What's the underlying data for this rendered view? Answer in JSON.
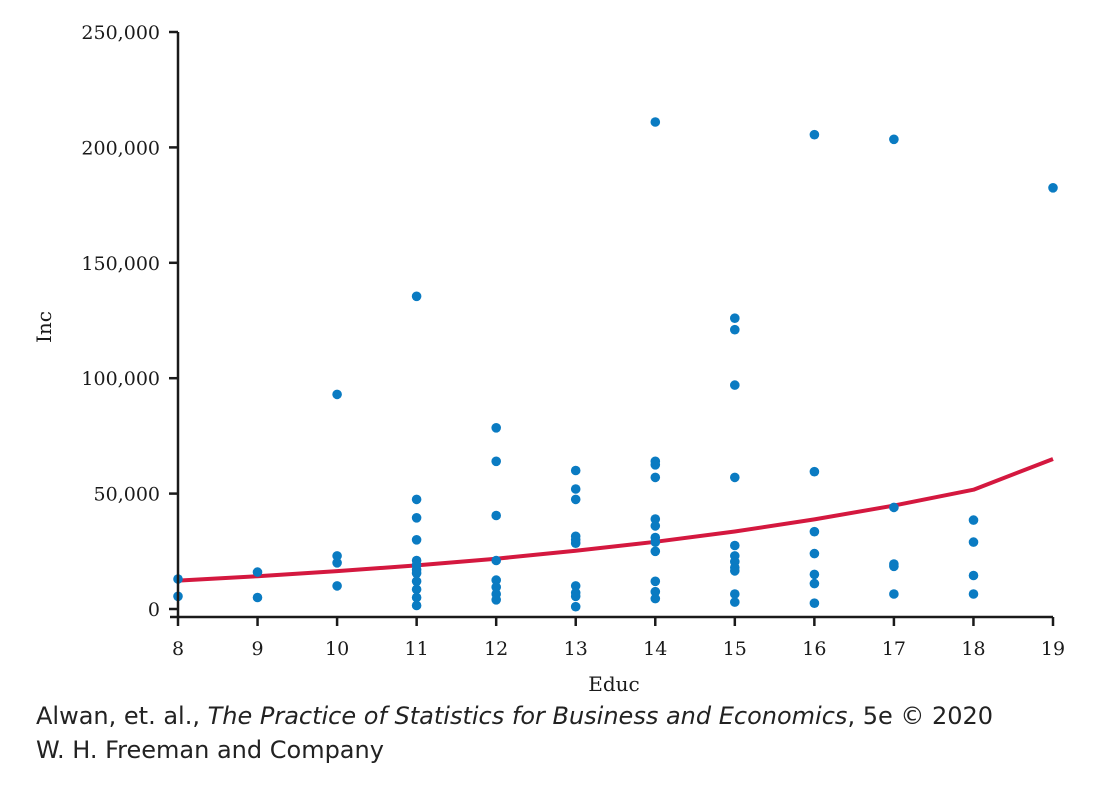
{
  "chart_data": {
    "type": "scatter",
    "xlabel": "Educ",
    "ylabel": "Inc",
    "xlim": [
      8,
      19
    ],
    "ylim": [
      0,
      250000
    ],
    "x_ticks": [
      "8",
      "9",
      "10",
      "11",
      "12",
      "13",
      "14",
      "15",
      "16",
      "17",
      "18",
      "19"
    ],
    "y_ticks": [
      "0",
      "50,000",
      "100,000",
      "150,000",
      "200,000",
      "250,000"
    ],
    "grid": false,
    "point_color": "#0a7bc2",
    "curve_color": "#d4183f",
    "points": [
      [
        8,
        13000
      ],
      [
        8,
        5500
      ],
      [
        9,
        16000
      ],
      [
        9,
        5000
      ],
      [
        10,
        93000
      ],
      [
        10,
        23000
      ],
      [
        10,
        20000
      ],
      [
        10,
        10000
      ],
      [
        11,
        135500
      ],
      [
        11,
        47500
      ],
      [
        11,
        39500
      ],
      [
        11,
        30000
      ],
      [
        11,
        21000
      ],
      [
        11,
        19000
      ],
      [
        11,
        17000
      ],
      [
        11,
        15500
      ],
      [
        11,
        12000
      ],
      [
        11,
        8500
      ],
      [
        11,
        5000
      ],
      [
        11,
        1500
      ],
      [
        12,
        78500
      ],
      [
        12,
        64000
      ],
      [
        12,
        40500
      ],
      [
        12,
        21000
      ],
      [
        12,
        12500
      ],
      [
        12,
        9500
      ],
      [
        12,
        6500
      ],
      [
        12,
        4000
      ],
      [
        13,
        60000
      ],
      [
        13,
        52000
      ],
      [
        13,
        47500
      ],
      [
        13,
        31500
      ],
      [
        13,
        30000
      ],
      [
        13,
        28500
      ],
      [
        13,
        10000
      ],
      [
        13,
        7000
      ],
      [
        13,
        5500
      ],
      [
        13,
        1000
      ],
      [
        14,
        211000
      ],
      [
        14,
        64000
      ],
      [
        14,
        62500
      ],
      [
        14,
        57000
      ],
      [
        14,
        39000
      ],
      [
        14,
        36000
      ],
      [
        14,
        31000
      ],
      [
        14,
        29000
      ],
      [
        14,
        25000
      ],
      [
        14,
        12000
      ],
      [
        14,
        7500
      ],
      [
        14,
        4500
      ],
      [
        15,
        126000
      ],
      [
        15,
        121000
      ],
      [
        15,
        97000
      ],
      [
        15,
        57000
      ],
      [
        15,
        27500
      ],
      [
        15,
        23000
      ],
      [
        15,
        20500
      ],
      [
        15,
        18000
      ],
      [
        15,
        16500
      ],
      [
        15,
        6500
      ],
      [
        15,
        3000
      ],
      [
        16,
        205500
      ],
      [
        16,
        59500
      ],
      [
        16,
        33500
      ],
      [
        16,
        24000
      ],
      [
        16,
        15000
      ],
      [
        16,
        11000
      ],
      [
        16,
        2500
      ],
      [
        17,
        203500
      ],
      [
        17,
        44000
      ],
      [
        17,
        19500
      ],
      [
        17,
        18500
      ],
      [
        17,
        6500
      ],
      [
        18,
        38500
      ],
      [
        18,
        29000
      ],
      [
        18,
        14500
      ],
      [
        18,
        6500
      ],
      [
        19,
        182500
      ]
    ],
    "curve": {
      "type": "exponential",
      "x": [
        8,
        9,
        10,
        11,
        12,
        13,
        14,
        15,
        16,
        17,
        18,
        19
      ],
      "y": [
        12300,
        14200,
        16400,
        18900,
        21800,
        25200,
        29100,
        33600,
        38800,
        44800,
        51700,
        65000
      ]
    }
  },
  "credit": {
    "line1_prefix": "Alwan, et. al., ",
    "line1_title": "The Practice of Statistics for Business and Economics",
    "line1_suffix": ", 5e © 2020",
    "line2": "W. H. Freeman and Company"
  }
}
